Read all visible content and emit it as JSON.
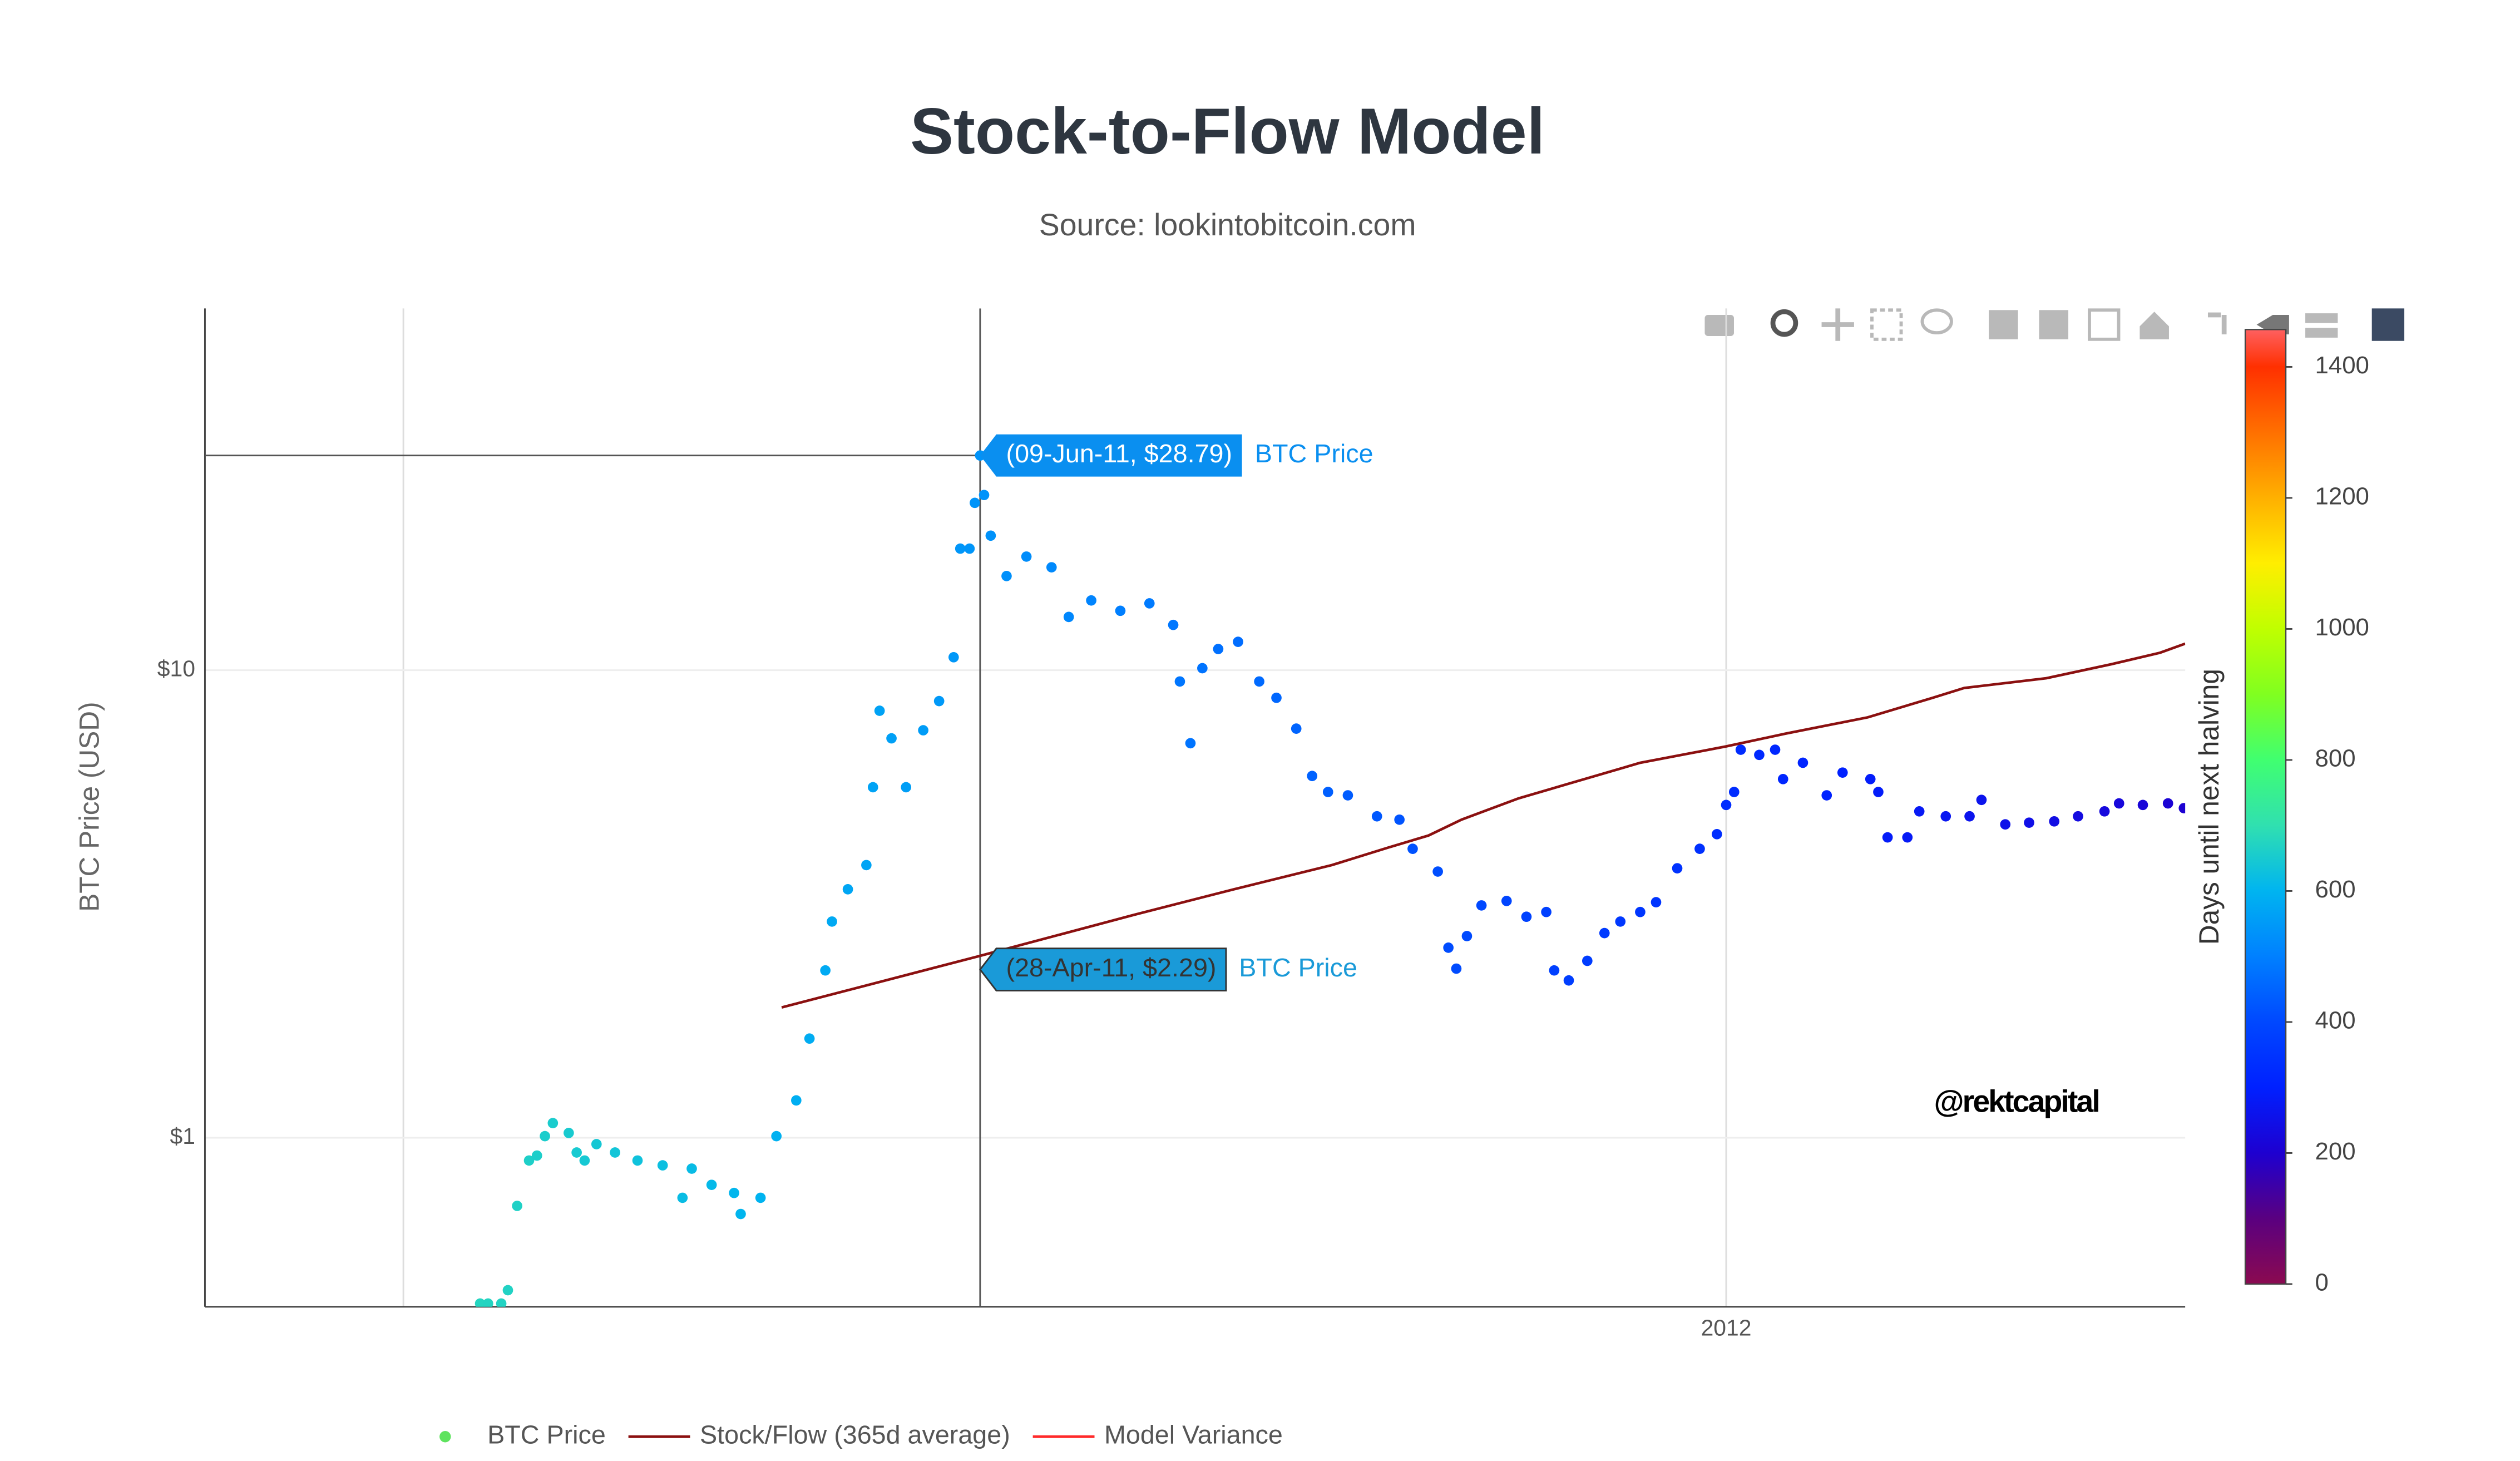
{
  "chart_data": {
    "type": "scatter",
    "title": "Stock-to-Flow Model",
    "subtitle": "Source: lookintobitcoin.com",
    "yaxis_title": "BTC Price (USD)",
    "log_y": true,
    "grid": true,
    "legend": "bottom",
    "xlim": [
      2010.85,
      2012.347
    ],
    "ylim": [
      0.435,
      59.4
    ],
    "xticks": [
      2012
    ],
    "xgrid": [
      2011,
      2012
    ],
    "yticks": [
      {
        "value": 1,
        "label": "$1"
      },
      {
        "value": 10,
        "label": "$10"
      }
    ],
    "series": [
      {
        "name": "BTC Price",
        "type": "scatter",
        "color": "#5ee35e",
        "x": [
          2011.058,
          2011.064,
          2011.074,
          2011.079,
          2011.086,
          2011.095,
          2011.101,
          2011.107,
          2011.113,
          2011.125,
          2011.131,
          2011.137,
          2011.146,
          2011.16,
          2011.177,
          2011.196,
          2011.211,
          2011.218,
          2011.233,
          2011.25,
          2011.255,
          2011.27,
          2011.282,
          2011.297,
          2011.307,
          2011.319,
          2011.324,
          2011.336,
          2011.35,
          2011.355,
          2011.36,
          2011.369,
          2011.38,
          2011.393,
          2011.405,
          2011.416,
          2011.421,
          2011.428,
          2011.432,
          2011.436,
          2011.439,
          2011.444,
          2011.456,
          2011.471,
          2011.49,
          2011.503,
          2011.52,
          2011.542,
          2011.564,
          2011.582,
          2011.587,
          2011.595,
          2011.604,
          2011.616,
          2011.631,
          2011.647,
          2011.66,
          2011.675,
          2011.687,
          2011.699,
          2011.714,
          2011.736,
          2011.753,
          2011.763,
          2011.782,
          2011.79,
          2011.796,
          2011.804,
          2011.815,
          2011.834,
          2011.849,
          2011.864,
          2011.87,
          2011.881,
          2011.895,
          2011.908,
          2011.92,
          2011.935,
          2011.947,
          2011.963,
          2011.98,
          2011.993,
          2012.0,
          2012.006,
          2012.011,
          2012.025,
          2012.037,
          2012.043,
          2012.058,
          2012.076,
          2012.088,
          2012.109,
          2012.115,
          2012.122,
          2012.137,
          2012.146,
          2012.166,
          2012.184,
          2012.193,
          2012.211,
          2012.229,
          2012.248,
          2012.266,
          2012.286,
          2012.297,
          2012.315,
          2012.334,
          2012.346
        ],
        "values": [
          0.442,
          0.442,
          0.442,
          0.472,
          0.715,
          0.894,
          0.916,
          1.008,
          1.075,
          1.024,
          0.93,
          0.894,
          0.969,
          0.93,
          0.894,
          0.873,
          0.744,
          0.859,
          0.793,
          0.762,
          0.687,
          0.744,
          1.008,
          1.202,
          1.63,
          2.28,
          2.9,
          3.4,
          3.83,
          5.62,
          8.19,
          7.15,
          5.62,
          7.44,
          8.59,
          10.66,
          18.2,
          18.2,
          22.8,
          28.79,
          23.7,
          19.4,
          15.9,
          17.5,
          16.6,
          13.0,
          14.1,
          13.4,
          13.9,
          12.5,
          9.46,
          6.98,
          10.1,
          11.1,
          11.5,
          9.46,
          8.73,
          7.5,
          5.94,
          5.49,
          5.4,
          4.87,
          4.79,
          4.15,
          3.71,
          2.55,
          2.3,
          2.7,
          3.14,
          3.21,
          2.97,
          3.04,
          2.28,
          2.17,
          2.39,
          2.74,
          2.9,
          3.04,
          3.19,
          3.77,
          4.15,
          4.46,
          5.15,
          5.49,
          6.76,
          6.59,
          6.76,
          5.85,
          6.34,
          5.4,
          6.04,
          5.85,
          5.49,
          4.39,
          4.39,
          4.99,
          4.87,
          4.87,
          5.28,
          4.68,
          4.72,
          4.75,
          4.87,
          4.99,
          5.19,
          5.15,
          5.19,
          5.07
        ],
        "color_values": [
          675,
          673,
          670,
          668,
          665,
          662,
          660,
          657,
          655,
          651,
          649,
          646,
          643,
          638,
          632,
          625,
          619,
          617,
          611,
          605,
          603,
          598,
          594,
          588,
          584,
          580,
          578,
          574,
          569,
          567,
          565,
          562,
          558,
          553,
          549,
          545,
          543,
          540,
          539,
          537,
          536,
          534,
          530,
          525,
          518,
          513,
          507,
          499,
          491,
          484,
          482,
          479,
          476,
          472,
          466,
          460,
          455,
          450,
          446,
          441,
          436,
          428,
          422,
          418,
          411,
          408,
          406,
          403,
          399,
          392,
          386,
          381,
          379,
          375,
          370,
          365,
          361,
          355,
          351,
          345,
          339,
          334,
          331,
          329,
          327,
          322,
          318,
          316,
          310,
          304,
          299,
          291,
          289,
          287,
          281,
          278,
          271,
          264,
          261,
          254,
          248,
          241,
          234,
          227,
          223,
          216,
          209,
          205
        ]
      },
      {
        "name": "Stock/Flow (365d average)",
        "type": "line",
        "color": "#8b1010",
        "x": [
          2011.286,
          2011.436,
          2011.555,
          2011.628,
          2011.702,
          2011.745,
          2011.775,
          2011.8,
          2011.843,
          2011.88,
          2011.935,
          2012.0,
          2012.045,
          2012.107,
          2012.156,
          2012.18,
          2012.242,
          2012.291,
          2012.328,
          2012.347
        ],
        "values": [
          1.9,
          2.45,
          3.01,
          3.4,
          3.83,
          4.18,
          4.43,
          4.79,
          5.32,
          5.71,
          6.34,
          6.87,
          7.32,
          7.93,
          8.73,
          9.16,
          9.61,
          10.3,
          10.9,
          11.4
        ]
      },
      {
        "name": "Model Variance",
        "type": "line",
        "color": "#ff2a2a"
      }
    ],
    "colorbar": {
      "title": "Days until next halving",
      "clim": [
        0,
        1457
      ],
      "ticks": [
        0,
        200,
        400,
        600,
        800,
        1000,
        1200,
        1400
      ],
      "colorscale": [
        [
          0,
          "#8b0a50"
        ],
        [
          100,
          "#5a0080"
        ],
        [
          200,
          "#1e00d0"
        ],
        [
          300,
          "#0020ff"
        ],
        [
          400,
          "#0048ff"
        ],
        [
          500,
          "#0080ff"
        ],
        [
          600,
          "#00b4f0"
        ],
        [
          700,
          "#30e0b0"
        ],
        [
          800,
          "#40ff70"
        ],
        [
          900,
          "#80ff20"
        ],
        [
          1000,
          "#c0ff00"
        ],
        [
          1100,
          "#ffee00"
        ],
        [
          1200,
          "#ffb000"
        ],
        [
          1300,
          "#ff7000"
        ],
        [
          1400,
          "#ff3000"
        ],
        [
          1457,
          "#ff6060"
        ]
      ]
    },
    "hover": {
      "x": 2011.436,
      "labels": [
        {
          "text": "(09-Jun-11, $28.79)",
          "name": "BTC Price",
          "y": 28.79,
          "color": "#0a8ff0",
          "text_color": "#ffffff"
        },
        {
          "text": "(28-Apr-11, $2.29)",
          "name": "BTC Price",
          "y": 2.29,
          "color": "#1a9ad8",
          "text_color": "#333333"
        }
      ]
    },
    "annotations": [
      {
        "text": "@rektcapital"
      }
    ]
  }
}
